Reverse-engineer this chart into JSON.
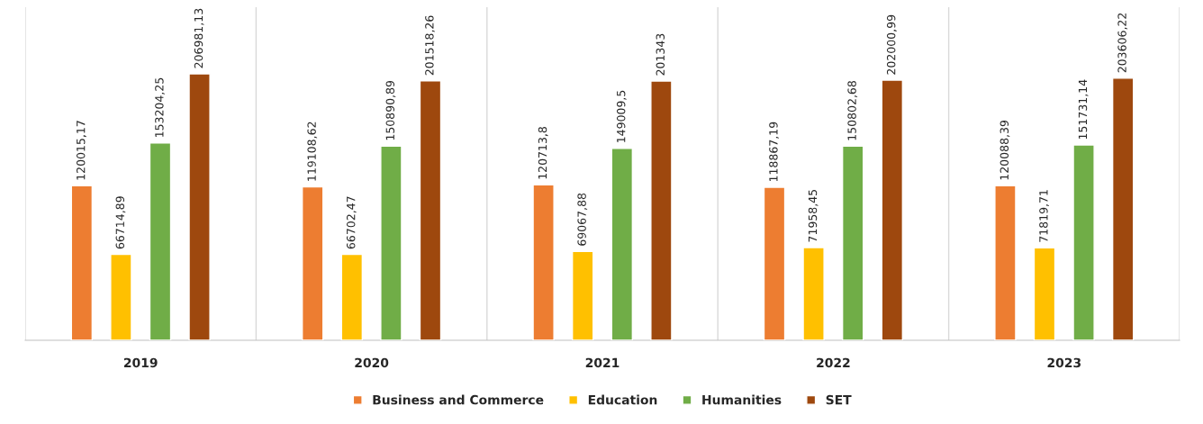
{
  "chart_data": {
    "type": "bar",
    "categories": [
      "2019",
      "2020",
      "2021",
      "2022",
      "2023"
    ],
    "series": [
      {
        "name": "Business and Commerce",
        "color": "#ed7d31",
        "values": [
          120015.17,
          119108.62,
          120713.8,
          118867.19,
          120088.39
        ],
        "value_labels": [
          "120015,17",
          "119108,62",
          "120713,8",
          "118867,19",
          "120088,39"
        ]
      },
      {
        "name": "Education",
        "color": "#ffc000",
        "values": [
          66714.89,
          66702.47,
          69067.88,
          71958.45,
          71819.71
        ],
        "value_labels": [
          "66714,89",
          "66702,47",
          "69067,88",
          "71958,45",
          "71819,71"
        ]
      },
      {
        "name": "Humanities",
        "color": "#70ad47",
        "values": [
          153204.25,
          150890.89,
          149009.5,
          150802.68,
          151731.14
        ],
        "value_labels": [
          "153204,25",
          "150890,89",
          "149009,5",
          "150802,68",
          "151731,14"
        ]
      },
      {
        "name": "SET",
        "color": "#9e480e",
        "values": [
          206981.13,
          201518.26,
          201343,
          202000.99,
          203606.22
        ],
        "value_labels": [
          "206981,13",
          "201518,26",
          "201343",
          "202000,99",
          "203606,22"
        ]
      }
    ],
    "grid": "x",
    "legend": "bottom"
  }
}
